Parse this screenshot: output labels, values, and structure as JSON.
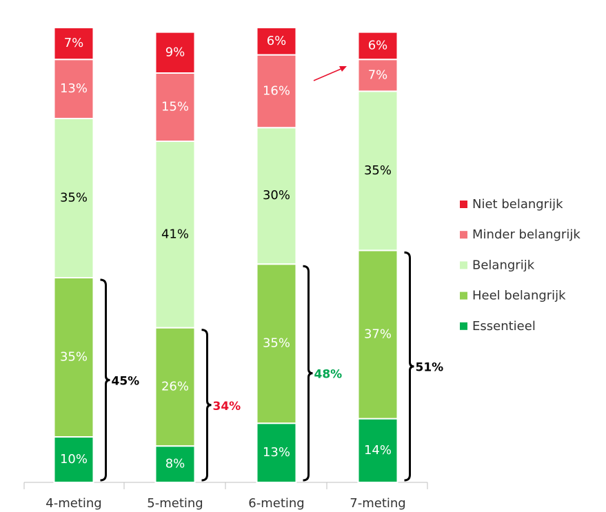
{
  "chart_data": {
    "type": "stacked_bar",
    "categories": [
      "4-meting",
      "5-meting",
      "6-meting",
      "7-meting"
    ],
    "series": [
      {
        "name": "Essentieel",
        "color": "#00b050",
        "label_color": "#ffffff",
        "values": [
          10,
          8,
          13,
          14
        ],
        "value_labels": [
          "10%",
          "8%",
          "13%",
          "14%"
        ]
      },
      {
        "name": "Heel belangrijk",
        "color": "#92d050",
        "label_color": "#ffffff",
        "values": [
          35,
          26,
          35,
          37
        ],
        "value_labels": [
          "35%",
          "26%",
          "35%",
          "37%"
        ]
      },
      {
        "name": "Belangrijk",
        "color": "#ccf7b9",
        "label_color": "#000000",
        "values": [
          35,
          41,
          30,
          35
        ],
        "value_labels": [
          "35%",
          "41%",
          "30%",
          "35%"
        ]
      },
      {
        "name": "Minder belangrijk",
        "color": "#f4737a",
        "label_color": "#ffffff",
        "values": [
          13,
          15,
          16,
          7
        ],
        "value_labels": [
          "13%",
          "15%",
          "16%",
          "7%"
        ]
      },
      {
        "name": "Niet belangrijk",
        "color": "#ea1a2c",
        "label_color": "#ffffff",
        "values": [
          7,
          9,
          6,
          6
        ],
        "value_labels": [
          "7%",
          "9%",
          "6%",
          "6%"
        ]
      }
    ],
    "ylim": [
      0,
      100
    ],
    "annotations": [
      {
        "label": "45%",
        "color": "#000000"
      },
      {
        "label": "34%",
        "color": "#e8112d"
      },
      {
        "label": "48%",
        "color": "#00a651"
      },
      {
        "label": "51%",
        "color": "#000000"
      }
    ],
    "legend": "right"
  }
}
